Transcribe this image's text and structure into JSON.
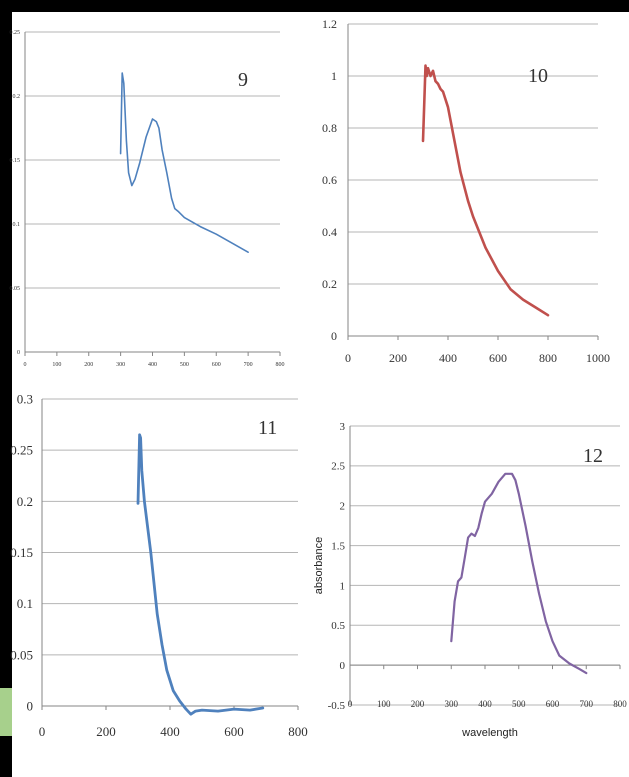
{
  "chart_data": [
    {
      "type": "line",
      "panel_label": "9",
      "color": "#4f81bd",
      "xlim": [
        0,
        800
      ],
      "ylim": [
        0,
        0.25
      ],
      "xticks": [
        0,
        100,
        200,
        300,
        400,
        500,
        600,
        700,
        800
      ],
      "yticks": [
        0,
        0.05,
        0.1,
        0.15,
        0.2,
        0.25
      ],
      "xtick_labels": [
        "0",
        "100",
        "200",
        "300",
        "400",
        "500",
        "600",
        "700",
        "800"
      ],
      "ytick_labels": [
        "0",
        "0.05",
        "0.1",
        "0.15",
        "0.2",
        "0.25"
      ],
      "xlabel": "",
      "ylabel": "",
      "grid": true,
      "x": [
        300,
        305,
        310,
        318,
        325,
        335,
        345,
        360,
        380,
        400,
        412,
        420,
        430,
        445,
        460,
        470,
        480,
        500,
        550,
        600,
        650,
        700
      ],
      "y": [
        0.155,
        0.218,
        0.21,
        0.165,
        0.14,
        0.13,
        0.135,
        0.148,
        0.168,
        0.182,
        0.18,
        0.175,
        0.158,
        0.14,
        0.12,
        0.112,
        0.11,
        0.105,
        0.098,
        0.092,
        0.085,
        0.078
      ]
    },
    {
      "type": "line",
      "panel_label": "10",
      "color": "#c0504d",
      "xlim": [
        0,
        1000
      ],
      "ylim": [
        0,
        1.2
      ],
      "xticks": [
        0,
        200,
        400,
        600,
        800,
        1000
      ],
      "yticks": [
        0,
        0.2,
        0.4,
        0.6,
        0.8,
        1,
        1.2
      ],
      "xtick_labels": [
        "0",
        "200",
        "400",
        "600",
        "800",
        "1000"
      ],
      "ytick_labels": [
        "0",
        "0.2",
        "0.4",
        "0.6",
        "0.8",
        "1",
        "1.2"
      ],
      "xlabel": "",
      "ylabel": "",
      "grid": true,
      "x": [
        300,
        305,
        310,
        315,
        320,
        330,
        340,
        350,
        360,
        370,
        380,
        400,
        420,
        450,
        480,
        500,
        550,
        600,
        650,
        700,
        750,
        800
      ],
      "y": [
        0.75,
        0.9,
        1.04,
        1.0,
        1.03,
        1.0,
        1.02,
        0.98,
        0.97,
        0.95,
        0.94,
        0.88,
        0.78,
        0.63,
        0.52,
        0.46,
        0.34,
        0.25,
        0.18,
        0.14,
        0.11,
        0.08
      ]
    },
    {
      "type": "line",
      "panel_label": "11",
      "color": "#4f81bd",
      "xlim": [
        0,
        800
      ],
      "ylim": [
        0,
        0.3
      ],
      "xticks": [
        0,
        200,
        400,
        600,
        800
      ],
      "yticks": [
        0,
        0.05,
        0.1,
        0.15,
        0.2,
        0.25,
        0.3
      ],
      "xtick_labels": [
        "0",
        "200",
        "400",
        "600",
        "800"
      ],
      "ytick_labels": [
        "0",
        "0.05",
        "0.1",
        "0.15",
        "0.2",
        "0.25",
        "0.3"
      ],
      "xlabel": "",
      "ylabel": "",
      "grid": true,
      "x": [
        300,
        305,
        308,
        312,
        320,
        330,
        340,
        350,
        360,
        375,
        390,
        410,
        430,
        450,
        465,
        480,
        500,
        550,
        600,
        650,
        690
      ],
      "y": [
        0.198,
        0.265,
        0.262,
        0.23,
        0.2,
        0.175,
        0.15,
        0.12,
        0.09,
        0.06,
        0.035,
        0.015,
        0.005,
        -0.003,
        -0.008,
        -0.005,
        -0.004,
        -0.005,
        -0.003,
        -0.004,
        -0.002
      ]
    },
    {
      "type": "line",
      "panel_label": "12",
      "color": "#8064a2",
      "xlim": [
        0,
        800
      ],
      "ylim": [
        -0.5,
        3
      ],
      "xticks": [
        0,
        100,
        200,
        300,
        400,
        500,
        600,
        700,
        800
      ],
      "yticks": [
        -0.5,
        0,
        0.5,
        1,
        1.5,
        2,
        2.5,
        3
      ],
      "xtick_labels": [
        "0",
        "100",
        "200",
        "300",
        "400",
        "500",
        "600",
        "700",
        "800"
      ],
      "ytick_labels": [
        "-0.5",
        "0",
        "0.5",
        "1",
        "1.5",
        "2",
        "2.5",
        "3"
      ],
      "xlabel": "wavelength",
      "ylabel": "absorbance",
      "grid": true,
      "x": [
        300,
        310,
        320,
        330,
        340,
        350,
        360,
        370,
        380,
        390,
        400,
        420,
        440,
        460,
        480,
        490,
        500,
        520,
        540,
        560,
        580,
        600,
        620,
        650,
        680,
        700
      ],
      "y": [
        0.3,
        0.8,
        1.05,
        1.1,
        1.35,
        1.6,
        1.65,
        1.62,
        1.72,
        1.9,
        2.05,
        2.15,
        2.3,
        2.4,
        2.4,
        2.32,
        2.15,
        1.75,
        1.3,
        0.9,
        0.55,
        0.3,
        0.12,
        0.02,
        -0.05,
        -0.1
      ]
    }
  ]
}
